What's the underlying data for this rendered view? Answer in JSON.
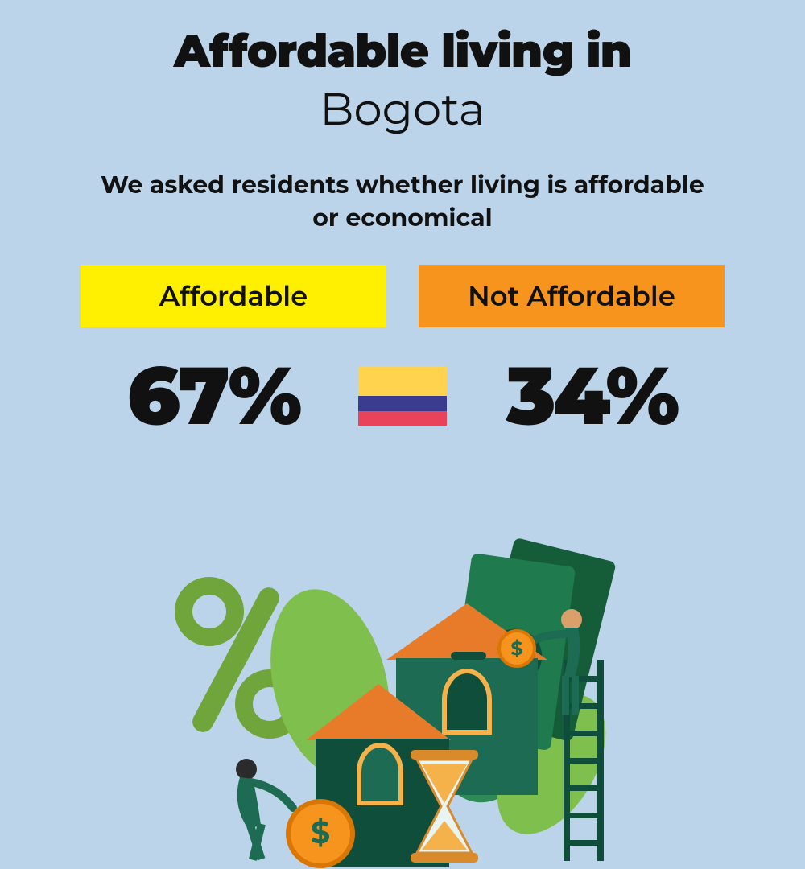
{
  "background_color": "#bcd4ea",
  "title": {
    "line1": "Affordable living in",
    "line1_weight": 900,
    "line2": "Bogota",
    "line2_weight": 400,
    "fontsize": 56,
    "color": "#111111"
  },
  "subtitle": {
    "text": "We asked residents whether living is affordable or economical",
    "fontsize": 30,
    "weight": 700,
    "color": "#111111"
  },
  "tags": {
    "affordable": {
      "label": "Affordable",
      "bg": "#ffef00",
      "text_color": "#111111"
    },
    "not_affordable": {
      "label": "Not Affordable",
      "bg": "#f7941d",
      "text_color": "#111111"
    },
    "fontsize": 34,
    "weight": 600
  },
  "percents": {
    "affordable": "67%",
    "not_affordable": "34%",
    "fontsize": 100,
    "weight": 900,
    "color": "#111111"
  },
  "flag": {
    "stripes": [
      {
        "color": "#ffd34e",
        "height_pct": 50
      },
      {
        "color": "#3b3b8f",
        "height_pct": 25
      },
      {
        "color": "#e8435a",
        "height_pct": 25
      }
    ]
  },
  "illustration": {
    "percent_symbol_color": "#6fa53a",
    "leaf_color": "#2e8b57",
    "leaf_light": "#7fbf4d",
    "house_wall": "#1c6b52",
    "house_wall_dark": "#0f4e3b",
    "house_roof": "#e87b29",
    "window_frame": "#f5b24a",
    "coin_fill": "#f7941d",
    "coin_stroke": "#d97706",
    "coin_text": "#1c6b52",
    "money_fill": "#1f7a4d",
    "money_fill_dark": "#155c39",
    "money_center": "#0f4e3b",
    "hourglass_frame": "#d98a2b",
    "hourglass_glass": "#e8f4ef",
    "hourglass_sand": "#f5b24a",
    "person_body": "#1c6b52",
    "person_skin": "#d9a06b",
    "ladder": "#0f4e3b"
  }
}
